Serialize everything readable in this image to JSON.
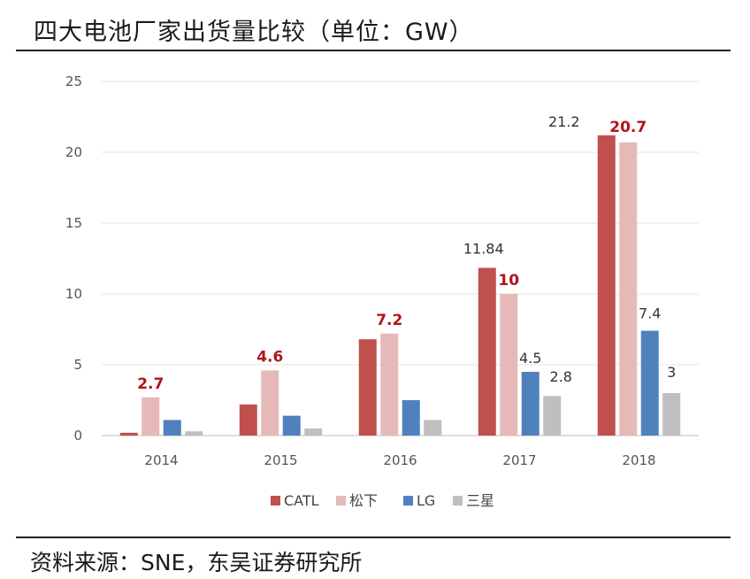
{
  "title": "四大电池厂家出货量比较（单位：GW）",
  "source": "资料来源：SNE，东吴证券研究所",
  "chart_data": {
    "type": "bar",
    "categories": [
      "2014",
      "2015",
      "2016",
      "2017",
      "2018"
    ],
    "ylim": [
      0,
      25
    ],
    "yticks": [
      0,
      5,
      10,
      15,
      20,
      25
    ],
    "grid": true,
    "legend_position": "bottom",
    "series": [
      {
        "name": "CATL",
        "color": "#c0504d",
        "values": [
          0.2,
          2.2,
          6.8,
          11.84,
          21.2
        ]
      },
      {
        "name": "松下",
        "color": "#e6b9b8",
        "values": [
          2.7,
          4.6,
          7.2,
          10,
          20.7
        ]
      },
      {
        "name": "LG",
        "color": "#4f81bd",
        "values": [
          1.1,
          1.4,
          2.5,
          4.5,
          7.4
        ]
      },
      {
        "name": "三星",
        "color": "#bfbfbf",
        "values": [
          0.3,
          0.5,
          1.1,
          2.8,
          3
        ]
      }
    ],
    "data_labels": [
      {
        "series": 1,
        "category": 0,
        "text": "2.7",
        "highlight": true
      },
      {
        "series": 1,
        "category": 1,
        "text": "4.6",
        "highlight": true
      },
      {
        "series": 1,
        "category": 2,
        "text": "7.2",
        "highlight": true
      },
      {
        "series": 0,
        "category": 3,
        "text": "11.84",
        "highlight": false
      },
      {
        "series": 1,
        "category": 3,
        "text": "10",
        "highlight": true
      },
      {
        "series": 2,
        "category": 3,
        "text": "4.5",
        "highlight": false
      },
      {
        "series": 3,
        "category": 3,
        "text": "2.8",
        "highlight": false
      },
      {
        "series": 0,
        "category": 4,
        "text": "21.2",
        "highlight": false
      },
      {
        "series": 1,
        "category": 4,
        "text": "20.7",
        "highlight": true
      },
      {
        "series": 2,
        "category": 4,
        "text": "7.4",
        "highlight": false
      },
      {
        "series": 3,
        "category": 4,
        "text": "3",
        "highlight": false
      }
    ]
  }
}
